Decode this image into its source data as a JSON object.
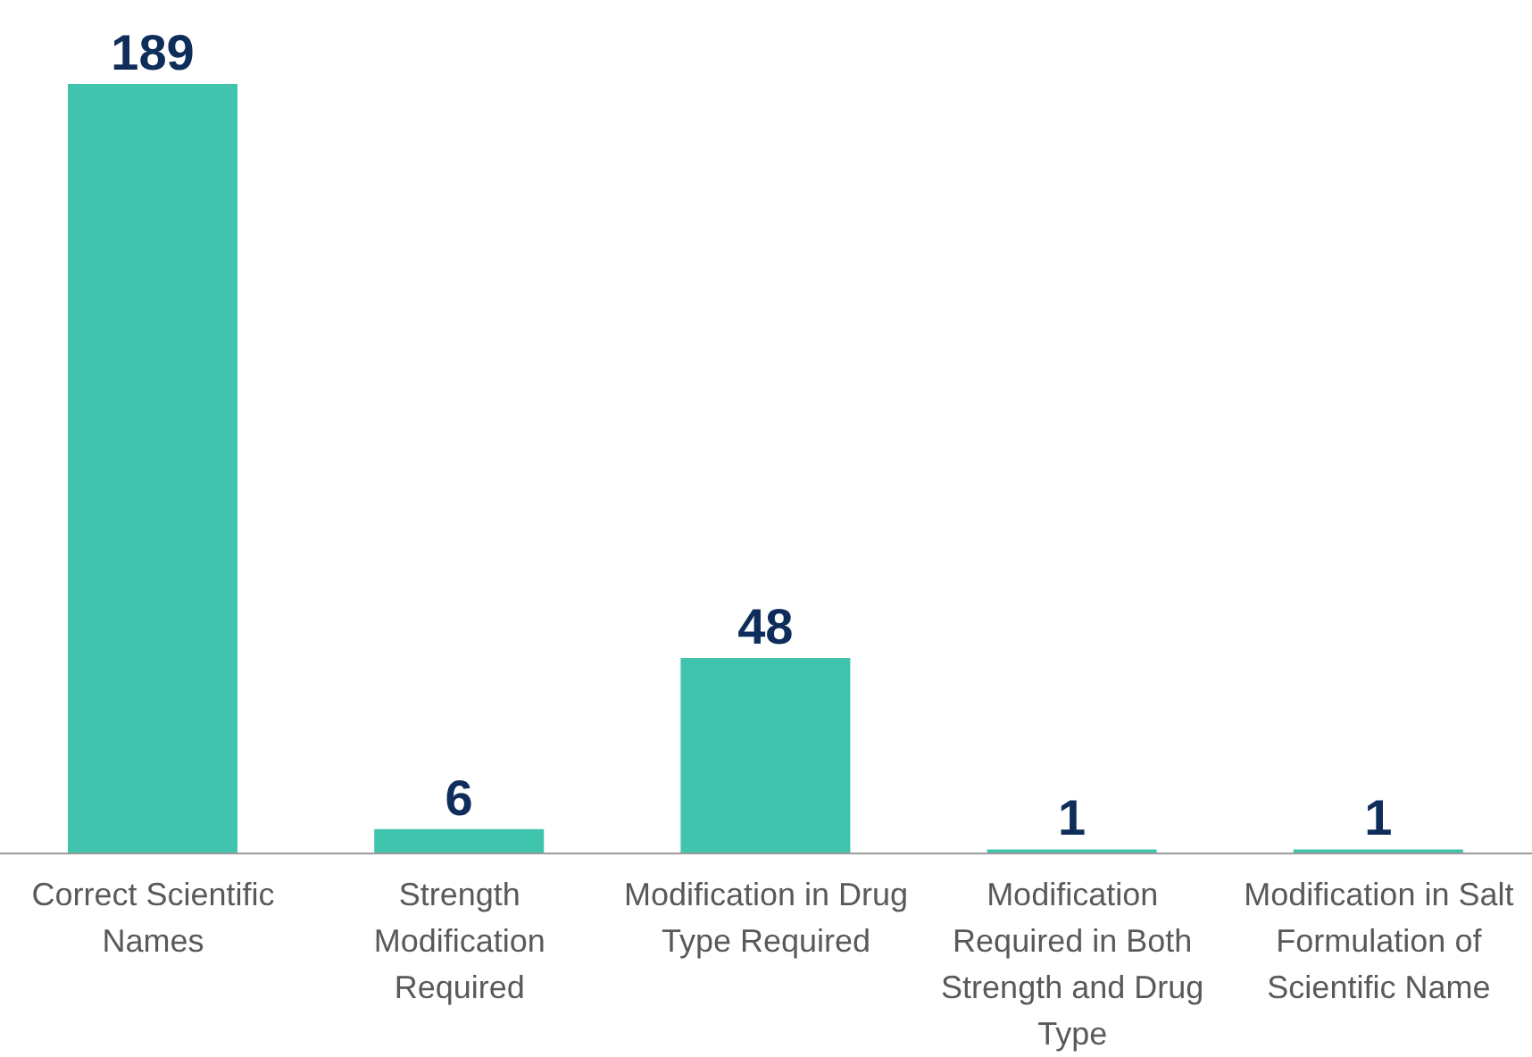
{
  "chart_data": {
    "type": "bar",
    "categories": [
      "Correct Scientific Names",
      "Strength Modification Required",
      "Modification in Drug Type Required",
      "Modification Required in Both Strength and Drug Type",
      "Modification in Salt Formulation of Scientific Name"
    ],
    "values": [
      189,
      6,
      48,
      1,
      1
    ],
    "color": "#40c4ad",
    "data_labels": true
  }
}
